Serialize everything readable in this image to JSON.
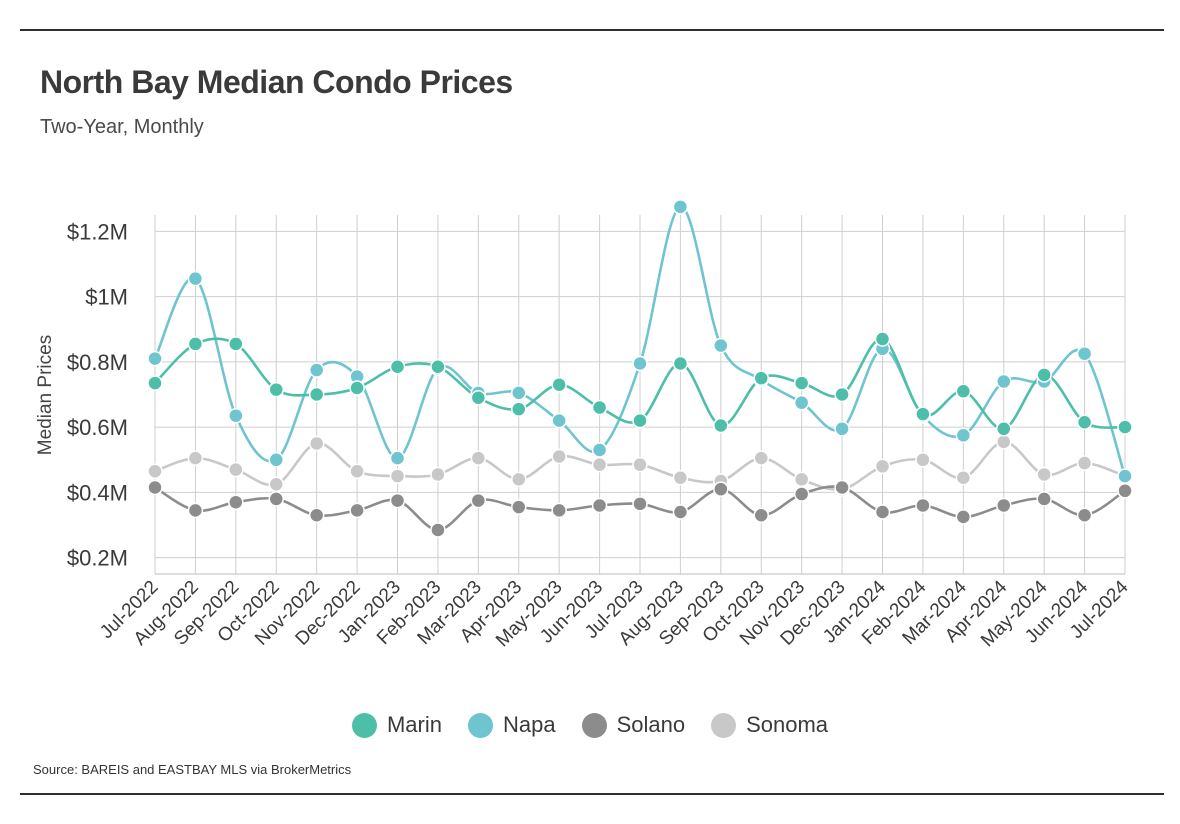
{
  "header": {
    "title": "North Bay Median Condo Prices",
    "subtitle": "Two-Year, Monthly"
  },
  "footer": {
    "source": "Source:  BAREIS and EASTBAY MLS via BrokerMetrics"
  },
  "chart_data": {
    "type": "line",
    "title": "North Bay Median Condo Prices",
    "subtitle": "Two-Year, Monthly",
    "xlabel": "",
    "ylabel": "Median Prices",
    "ylim": [
      200000,
      1200000
    ],
    "yticks": [
      {
        "value": 200000,
        "label": "$0.2M"
      },
      {
        "value": 400000,
        "label": "$0.4M"
      },
      {
        "value": 600000,
        "label": "$0.6M"
      },
      {
        "value": 800000,
        "label": "$0.8M"
      },
      {
        "value": 1000000,
        "label": "$1M"
      },
      {
        "value": 1200000,
        "label": "$1.2M"
      }
    ],
    "grid": true,
    "legend_position": "bottom",
    "categories": [
      "Jul-2022",
      "Aug-2022",
      "Sep-2022",
      "Oct-2022",
      "Nov-2022",
      "Dec-2022",
      "Jan-2023",
      "Feb-2023",
      "Mar-2023",
      "Apr-2023",
      "May-2023",
      "Jun-2023",
      "Jul-2023",
      "Aug-2023",
      "Sep-2023",
      "Oct-2023",
      "Nov-2023",
      "Dec-2023",
      "Jan-2024",
      "Feb-2024",
      "Mar-2024",
      "Apr-2024",
      "May-2024",
      "Jun-2024",
      "Jul-2024"
    ],
    "series": [
      {
        "name": "Marin",
        "color": "#4dbfa8",
        "values": [
          735000,
          855000,
          855000,
          715000,
          700000,
          720000,
          785000,
          785000,
          690000,
          655000,
          730000,
          660000,
          620000,
          795000,
          605000,
          750000,
          735000,
          700000,
          870000,
          640000,
          710000,
          595000,
          760000,
          615000,
          600000
        ]
      },
      {
        "name": "Napa",
        "color": "#6ec5cf",
        "values": [
          810000,
          1055000,
          635000,
          500000,
          775000,
          755000,
          505000,
          780000,
          705000,
          705000,
          620000,
          530000,
          795000,
          1275000,
          850000,
          745000,
          675000,
          595000,
          840000,
          635000,
          575000,
          740000,
          740000,
          825000,
          450000
        ]
      },
      {
        "name": "Solano",
        "color": "#8c8c8c",
        "values": [
          415000,
          345000,
          370000,
          380000,
          330000,
          345000,
          375000,
          285000,
          375000,
          355000,
          345000,
          360000,
          365000,
          340000,
          410000,
          330000,
          395000,
          415000,
          340000,
          360000,
          325000,
          360000,
          380000,
          330000,
          405000
        ]
      },
      {
        "name": "Sonoma",
        "color": "#c8c8c8",
        "values": [
          465000,
          505000,
          470000,
          425000,
          550000,
          465000,
          450000,
          455000,
          505000,
          440000,
          510000,
          485000,
          485000,
          445000,
          435000,
          505000,
          440000,
          410000,
          480000,
          500000,
          445000,
          555000,
          455000,
          490000,
          450000
        ]
      }
    ]
  }
}
